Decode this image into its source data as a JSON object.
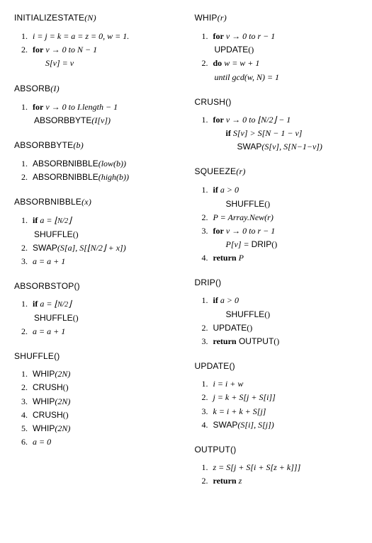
{
  "left": {
    "initializestate": {
      "title_sf": "INITIALIZESTATE",
      "title_arg": "(N)",
      "s1_num": "1.",
      "s1_text": "i = j = k = a = z = 0, w = 1.",
      "s2_num": "2.",
      "s2_for": "for",
      "s2_text": " v → 0 to N − 1",
      "s2_body": "S[v] = v"
    },
    "absorb": {
      "title_sf": "ABSORB",
      "title_arg": "(I)",
      "s1_num": "1.",
      "s1_for": "for",
      "s1_text": " v → 0 to I.length − 1",
      "s1_body_sf": "ABSORBBYTE",
      "s1_body_arg": "(I[v])"
    },
    "absorbbyte": {
      "title_sf": "ABSORBBYTE",
      "title_arg": "(b)",
      "s1_num": "1.",
      "s1_sf": "ABSORBNIBBLE",
      "s1_arg": "(low(b))",
      "s2_num": "2.",
      "s2_sf": "ABSORBNIBBLE",
      "s2_arg": "(high(b))"
    },
    "absorbnibble": {
      "title_sf": "ABSORBNIBBLE",
      "title_arg": "(x)",
      "s1_num": "1.",
      "s1_if": "if",
      "s1_text": " a = ⌊N/2⌋",
      "s1_body_sf": "SHUFFLE",
      "s1_body_arg": "()",
      "s2_num": "2.",
      "s2_sf": "SWAP",
      "s2_arg": "(S[a], S[⌊N/2⌋ + x])",
      "s3_num": "3.",
      "s3_text": "a = a + 1"
    },
    "absorbstop": {
      "title_sf": "ABSORBSTOP",
      "title_arg": "()",
      "s1_num": "1.",
      "s1_if": "if",
      "s1_text": " a = ⌊N/2⌋",
      "s1_body_sf": "SHUFFLE",
      "s1_body_arg": "()",
      "s2_num": "2.",
      "s2_text": "a = a + 1"
    },
    "shuffle": {
      "title_sf": "SHUFFLE",
      "title_arg": "()",
      "s1_num": "1.",
      "s1_sf": "WHIP",
      "s1_arg": "(2N)",
      "s2_num": "2.",
      "s2_sf": "CRUSH",
      "s2_arg": "()",
      "s3_num": "3.",
      "s3_sf": "WHIP",
      "s3_arg": "(2N)",
      "s4_num": "4.",
      "s4_sf": "CRUSH",
      "s4_arg": "()",
      "s5_num": "5.",
      "s5_sf": "WHIP",
      "s5_arg": "(2N)",
      "s6_num": "6.",
      "s6_text": "a = 0"
    }
  },
  "right": {
    "whip": {
      "title_sf": "WHIP",
      "title_arg": "(r)",
      "s1_num": "1.",
      "s1_for": "for",
      "s1_text": " v → 0 to r − 1",
      "s1_body_sf": "UPDATE",
      "s1_body_arg": "()",
      "s2_num": "2.",
      "s2_do": "do",
      "s2_text": " w = w + 1",
      "s2_until": "until gcd(w, N) = 1"
    },
    "crush": {
      "title_sf": "CRUSH",
      "title_arg": "()",
      "s1_num": "1.",
      "s1_for": "for",
      "s1_text": " v → 0 to ⌊N/2⌋ − 1",
      "s1_if": "if",
      "s1_if_text": " S[v] > S[N − 1 − v]",
      "s1_body_sf": "SWAP",
      "s1_body_arg": "(S[v], S[N−1−v])"
    },
    "squeeze": {
      "title_sf": "SQUEEZE",
      "title_arg": "(r)",
      "s1_num": "1.",
      "s1_if": "if",
      "s1_text": " a > 0",
      "s1_body_sf": "SHUFFLE",
      "s1_body_arg": "()",
      "s2_num": "2.",
      "s2_text": "P = Array.New(r)",
      "s3_num": "3.",
      "s3_for": "for",
      "s3_text": " v → 0 to r − 1",
      "s3_body_lhs": "P[v] = ",
      "s3_body_sf": "DRIP",
      "s3_body_arg": "()",
      "s4_num": "4.",
      "s4_ret": "return",
      "s4_text": " P"
    },
    "drip": {
      "title_sf": "DRIP",
      "title_arg": "()",
      "s1_num": "1.",
      "s1_if": "if",
      "s1_text": " a > 0",
      "s1_body_sf": "SHUFFLE",
      "s1_body_arg": "()",
      "s2_num": "2.",
      "s2_sf": "UPDATE",
      "s2_arg": "()",
      "s3_num": "3.",
      "s3_ret": "return",
      "s3_sf": " OUTPUT",
      "s3_arg": "()"
    },
    "update": {
      "title_sf": "UPDATE",
      "title_arg": "()",
      "s1_num": "1.",
      "s1_text": "i = i + w",
      "s2_num": "2.",
      "s2_text": "j = k + S[j + S[i]]",
      "s3_num": "3.",
      "s3_text": "k = i + k + S[j]",
      "s4_num": "4.",
      "s4_sf": "SWAP",
      "s4_arg": "(S[i], S[j])"
    },
    "output": {
      "title_sf": "OUTPUT",
      "title_arg": "()",
      "s1_num": "1.",
      "s1_text": "z = S[j + S[i + S[z + k]]]",
      "s2_num": "2.",
      "s2_ret": "return",
      "s2_text": " z"
    }
  }
}
